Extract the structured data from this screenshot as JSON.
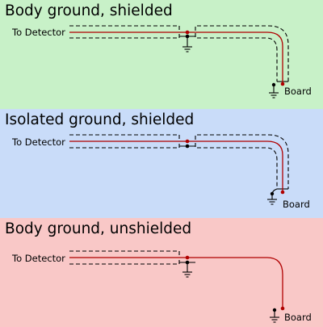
{
  "colors": {
    "panel_1_bg": "#c8f1c8",
    "panel_2_bg": "#c9dcf9",
    "panel_3_bg": "#f9c8c7",
    "signal_wire": "#b00000",
    "shield_and_ground": "#000000"
  },
  "panels": [
    {
      "title": "Body ground, shielded",
      "source_label": "To Detector",
      "target_label": "Board"
    },
    {
      "title": "Isolated ground, shielded",
      "source_label": "To Detector",
      "target_label": "Board"
    },
    {
      "title": "Body ground, unshielded",
      "source_label": "To Detector",
      "target_label": "Board"
    }
  ]
}
